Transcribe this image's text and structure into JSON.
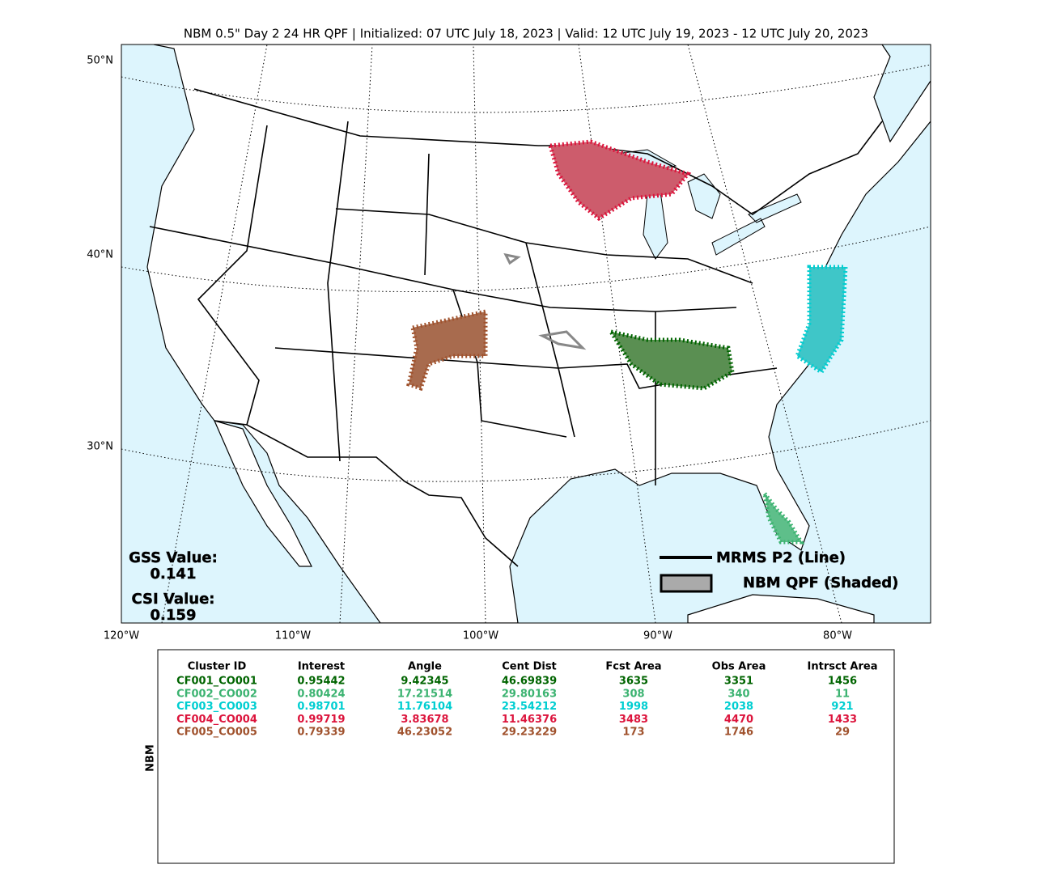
{
  "title": "NBM 0.5\" Day 2 24 HR QPF | Initialized: 07 UTC July 18, 2023 | Valid: 12 UTC July 19, 2023 - 12 UTC July 20, 2023",
  "map": {
    "lat_labels": [
      "50°N",
      "40°N",
      "30°N"
    ],
    "lon_labels": [
      "120°W",
      "110°W",
      "100°W",
      "90°W",
      "80°W"
    ],
    "gss_label": "GSS Value:",
    "gss_value": "0.141",
    "csi_label": "CSI Value:",
    "csi_value": "0.159",
    "legend": [
      "MRMS P2 (Line)",
      "NBM QPF (Shaded)"
    ]
  },
  "table": {
    "side_label": "NBM",
    "header": [
      "Cluster ID",
      "Interest",
      "Angle",
      "Cent Dist",
      "Fcst Area",
      "Obs Area",
      "Intrsct Area"
    ],
    "rows": [
      {
        "color": "#006400",
        "cells": [
          "CF001_CO001",
          "0.95442",
          "9.42345",
          "46.69839",
          "3635",
          "3351",
          "1456"
        ]
      },
      {
        "color": "#3cb371",
        "cells": [
          "CF002_CO002",
          "0.80424",
          "17.21514",
          "29.80163",
          "308",
          "340",
          "11"
        ]
      },
      {
        "color": "#00ced1",
        "cells": [
          "CF003_CO003",
          "0.98701",
          "11.76104",
          "23.54212",
          "1998",
          "2038",
          "921"
        ]
      },
      {
        "color": "#dc143c",
        "cells": [
          "CF004_CO004",
          "0.99719",
          "3.83678",
          "11.46376",
          "3483",
          "4470",
          "1433"
        ]
      },
      {
        "color": "#a0522d",
        "cells": [
          "CF005_CO005",
          "0.79339",
          "46.23052",
          "29.23229",
          "173",
          "1746",
          "29"
        ]
      }
    ]
  }
}
